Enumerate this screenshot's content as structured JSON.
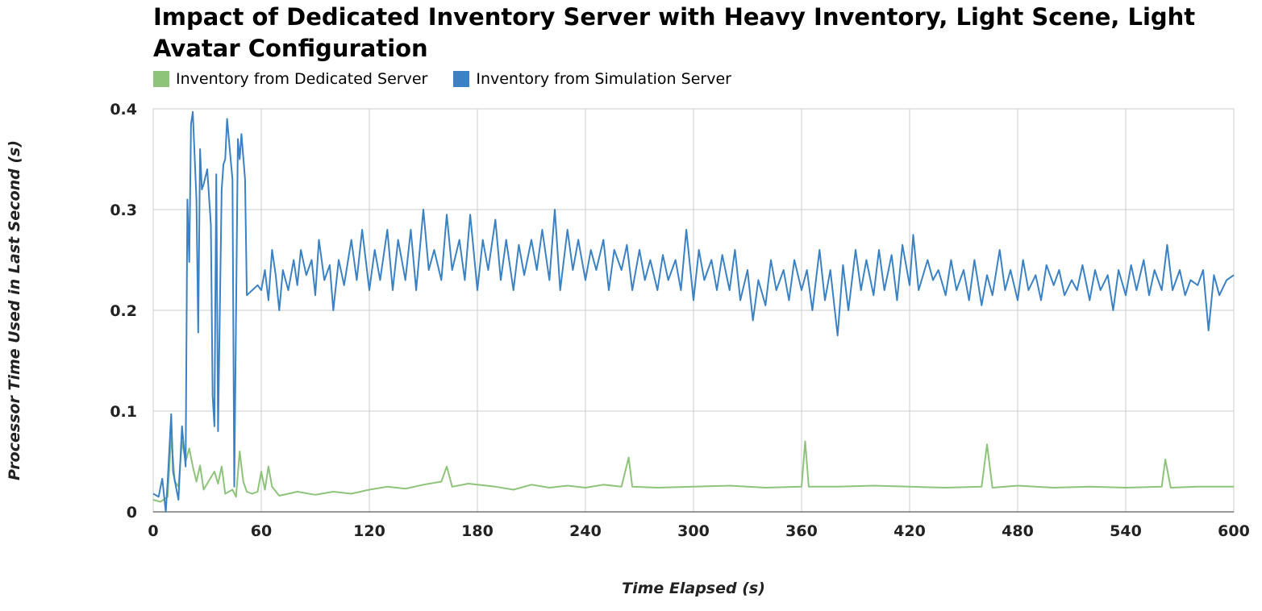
{
  "chart_data": {
    "type": "line",
    "title": "Impact of Dedicated Inventory Server with Heavy Inventory, Light Scene, Light Avatar Configuration",
    "xlabel": "Time Elapsed (s)",
    "ylabel": "Processor Time Used in Last Second (s)",
    "xlim": [
      0,
      600
    ],
    "ylim": [
      0,
      0.4
    ],
    "x_ticks": [
      0,
      60,
      120,
      180,
      240,
      300,
      360,
      420,
      480,
      540,
      600
    ],
    "y_ticks": [
      0,
      0.1,
      0.2,
      0.3,
      0.4
    ],
    "x_tick_labels": [
      "0",
      "60",
      "120",
      "180",
      "240",
      "300",
      "360",
      "420",
      "480",
      "540",
      "600"
    ],
    "y_tick_labels": [
      "0",
      "0.1",
      "0.2",
      "0.3",
      "0.4"
    ],
    "grid": true,
    "legend_position": "top-left",
    "series": [
      {
        "name": "Inventory from Dedicated Server",
        "color": "#8dc47a",
        "points": [
          [
            0,
            0.012
          ],
          [
            4,
            0.01
          ],
          [
            8,
            0.015
          ],
          [
            10,
            0.075
          ],
          [
            12,
            0.03
          ],
          [
            14,
            0.025
          ],
          [
            16,
            0.07
          ],
          [
            18,
            0.05
          ],
          [
            20,
            0.063
          ],
          [
            22,
            0.045
          ],
          [
            24,
            0.03
          ],
          [
            26,
            0.046
          ],
          [
            28,
            0.022
          ],
          [
            30,
            0.028
          ],
          [
            34,
            0.04
          ],
          [
            36,
            0.028
          ],
          [
            38,
            0.045
          ],
          [
            40,
            0.018
          ],
          [
            44,
            0.022
          ],
          [
            46,
            0.015
          ],
          [
            48,
            0.06
          ],
          [
            50,
            0.03
          ],
          [
            52,
            0.02
          ],
          [
            55,
            0.018
          ],
          [
            58,
            0.02
          ],
          [
            60,
            0.04
          ],
          [
            62,
            0.022
          ],
          [
            64,
            0.045
          ],
          [
            66,
            0.025
          ],
          [
            70,
            0.016
          ],
          [
            80,
            0.02
          ],
          [
            90,
            0.017
          ],
          [
            100,
            0.02
          ],
          [
            110,
            0.018
          ],
          [
            120,
            0.022
          ],
          [
            130,
            0.025
          ],
          [
            140,
            0.023
          ],
          [
            150,
            0.027
          ],
          [
            160,
            0.03
          ],
          [
            163,
            0.045
          ],
          [
            166,
            0.025
          ],
          [
            175,
            0.028
          ],
          [
            190,
            0.025
          ],
          [
            200,
            0.022
          ],
          [
            210,
            0.027
          ],
          [
            220,
            0.024
          ],
          [
            230,
            0.026
          ],
          [
            240,
            0.024
          ],
          [
            250,
            0.027
          ],
          [
            260,
            0.025
          ],
          [
            264,
            0.054
          ],
          [
            266,
            0.025
          ],
          [
            280,
            0.024
          ],
          [
            300,
            0.025
          ],
          [
            320,
            0.026
          ],
          [
            340,
            0.024
          ],
          [
            360,
            0.025
          ],
          [
            362,
            0.07
          ],
          [
            364,
            0.025
          ],
          [
            380,
            0.025
          ],
          [
            400,
            0.026
          ],
          [
            420,
            0.025
          ],
          [
            440,
            0.024
          ],
          [
            460,
            0.025
          ],
          [
            463,
            0.067
          ],
          [
            466,
            0.024
          ],
          [
            480,
            0.026
          ],
          [
            500,
            0.024
          ],
          [
            520,
            0.025
          ],
          [
            540,
            0.024
          ],
          [
            560,
            0.025
          ],
          [
            562,
            0.052
          ],
          [
            565,
            0.024
          ],
          [
            580,
            0.025
          ],
          [
            600,
            0.025
          ]
        ]
      },
      {
        "name": "Inventory from Simulation Server",
        "color": "#3b82c4",
        "points": [
          [
            0,
            0.018
          ],
          [
            3,
            0.015
          ],
          [
            5,
            0.033
          ],
          [
            7,
            0.0
          ],
          [
            8,
            0.03
          ],
          [
            10,
            0.097
          ],
          [
            11,
            0.04
          ],
          [
            14,
            0.012
          ],
          [
            16,
            0.085
          ],
          [
            18,
            0.045
          ],
          [
            19,
            0.31
          ],
          [
            20,
            0.248
          ],
          [
            21,
            0.385
          ],
          [
            22,
            0.397
          ],
          [
            24,
            0.31
          ],
          [
            25,
            0.178
          ],
          [
            26,
            0.36
          ],
          [
            27,
            0.32
          ],
          [
            28,
            0.325
          ],
          [
            30,
            0.34
          ],
          [
            32,
            0.285
          ],
          [
            33,
            0.115
          ],
          [
            34,
            0.085
          ],
          [
            35,
            0.335
          ],
          [
            36,
            0.08
          ],
          [
            38,
            0.32
          ],
          [
            39,
            0.345
          ],
          [
            40,
            0.35
          ],
          [
            41,
            0.39
          ],
          [
            43,
            0.35
          ],
          [
            44,
            0.33
          ],
          [
            45,
            0.025
          ],
          [
            47,
            0.37
          ],
          [
            48,
            0.35
          ],
          [
            49,
            0.375
          ],
          [
            51,
            0.33
          ],
          [
            52,
            0.215
          ],
          [
            55,
            0.22
          ],
          [
            58,
            0.225
          ],
          [
            60,
            0.22
          ],
          [
            62,
            0.24
          ],
          [
            64,
            0.21
          ],
          [
            66,
            0.26
          ],
          [
            68,
            0.235
          ],
          [
            70,
            0.2
          ],
          [
            72,
            0.24
          ],
          [
            75,
            0.22
          ],
          [
            78,
            0.25
          ],
          [
            80,
            0.225
          ],
          [
            82,
            0.26
          ],
          [
            85,
            0.235
          ],
          [
            88,
            0.25
          ],
          [
            90,
            0.215
          ],
          [
            92,
            0.27
          ],
          [
            95,
            0.23
          ],
          [
            98,
            0.245
          ],
          [
            100,
            0.2
          ],
          [
            103,
            0.25
          ],
          [
            106,
            0.225
          ],
          [
            110,
            0.27
          ],
          [
            113,
            0.23
          ],
          [
            116,
            0.28
          ],
          [
            120,
            0.22
          ],
          [
            123,
            0.26
          ],
          [
            126,
            0.23
          ],
          [
            130,
            0.28
          ],
          [
            133,
            0.22
          ],
          [
            136,
            0.27
          ],
          [
            140,
            0.23
          ],
          [
            143,
            0.28
          ],
          [
            146,
            0.22
          ],
          [
            150,
            0.3
          ],
          [
            153,
            0.24
          ],
          [
            156,
            0.26
          ],
          [
            160,
            0.23
          ],
          [
            163,
            0.295
          ],
          [
            166,
            0.24
          ],
          [
            170,
            0.27
          ],
          [
            173,
            0.23
          ],
          [
            176,
            0.295
          ],
          [
            180,
            0.22
          ],
          [
            183,
            0.27
          ],
          [
            186,
            0.24
          ],
          [
            190,
            0.29
          ],
          [
            193,
            0.23
          ],
          [
            196,
            0.27
          ],
          [
            200,
            0.22
          ],
          [
            203,
            0.265
          ],
          [
            206,
            0.235
          ],
          [
            210,
            0.27
          ],
          [
            213,
            0.24
          ],
          [
            216,
            0.28
          ],
          [
            220,
            0.23
          ],
          [
            223,
            0.3
          ],
          [
            226,
            0.22
          ],
          [
            230,
            0.28
          ],
          [
            233,
            0.24
          ],
          [
            236,
            0.27
          ],
          [
            240,
            0.23
          ],
          [
            243,
            0.26
          ],
          [
            246,
            0.24
          ],
          [
            250,
            0.27
          ],
          [
            253,
            0.22
          ],
          [
            256,
            0.26
          ],
          [
            260,
            0.24
          ],
          [
            263,
            0.265
          ],
          [
            266,
            0.22
          ],
          [
            270,
            0.26
          ],
          [
            273,
            0.23
          ],
          [
            276,
            0.25
          ],
          [
            280,
            0.22
          ],
          [
            283,
            0.255
          ],
          [
            286,
            0.23
          ],
          [
            290,
            0.25
          ],
          [
            293,
            0.22
          ],
          [
            296,
            0.28
          ],
          [
            300,
            0.21
          ],
          [
            303,
            0.26
          ],
          [
            306,
            0.23
          ],
          [
            310,
            0.25
          ],
          [
            313,
            0.22
          ],
          [
            316,
            0.255
          ],
          [
            320,
            0.22
          ],
          [
            323,
            0.26
          ],
          [
            326,
            0.21
          ],
          [
            330,
            0.24
          ],
          [
            333,
            0.19
          ],
          [
            336,
            0.23
          ],
          [
            340,
            0.205
          ],
          [
            343,
            0.25
          ],
          [
            346,
            0.22
          ],
          [
            350,
            0.24
          ],
          [
            353,
            0.21
          ],
          [
            356,
            0.25
          ],
          [
            360,
            0.22
          ],
          [
            363,
            0.24
          ],
          [
            366,
            0.2
          ],
          [
            370,
            0.26
          ],
          [
            373,
            0.21
          ],
          [
            376,
            0.24
          ],
          [
            380,
            0.175
          ],
          [
            383,
            0.245
          ],
          [
            386,
            0.2
          ],
          [
            390,
            0.26
          ],
          [
            393,
            0.22
          ],
          [
            396,
            0.25
          ],
          [
            400,
            0.215
          ],
          [
            403,
            0.26
          ],
          [
            406,
            0.22
          ],
          [
            410,
            0.255
          ],
          [
            413,
            0.21
          ],
          [
            416,
            0.265
          ],
          [
            420,
            0.225
          ],
          [
            422,
            0.275
          ],
          [
            425,
            0.22
          ],
          [
            430,
            0.25
          ],
          [
            433,
            0.23
          ],
          [
            436,
            0.24
          ],
          [
            440,
            0.215
          ],
          [
            443,
            0.25
          ],
          [
            446,
            0.22
          ],
          [
            450,
            0.24
          ],
          [
            453,
            0.21
          ],
          [
            456,
            0.25
          ],
          [
            460,
            0.205
          ],
          [
            463,
            0.235
          ],
          [
            466,
            0.215
          ],
          [
            470,
            0.26
          ],
          [
            473,
            0.22
          ],
          [
            476,
            0.24
          ],
          [
            480,
            0.21
          ],
          [
            483,
            0.25
          ],
          [
            486,
            0.22
          ],
          [
            490,
            0.235
          ],
          [
            493,
            0.21
          ],
          [
            496,
            0.245
          ],
          [
            500,
            0.225
          ],
          [
            503,
            0.24
          ],
          [
            506,
            0.215
          ],
          [
            510,
            0.23
          ],
          [
            513,
            0.22
          ],
          [
            516,
            0.245
          ],
          [
            520,
            0.21
          ],
          [
            523,
            0.24
          ],
          [
            526,
            0.22
          ],
          [
            530,
            0.235
          ],
          [
            533,
            0.2
          ],
          [
            536,
            0.24
          ],
          [
            540,
            0.215
          ],
          [
            543,
            0.245
          ],
          [
            546,
            0.22
          ],
          [
            550,
            0.25
          ],
          [
            553,
            0.215
          ],
          [
            556,
            0.24
          ],
          [
            560,
            0.22
          ],
          [
            563,
            0.265
          ],
          [
            566,
            0.22
          ],
          [
            570,
            0.24
          ],
          [
            573,
            0.215
          ],
          [
            576,
            0.23
          ],
          [
            580,
            0.225
          ],
          [
            583,
            0.24
          ],
          [
            586,
            0.18
          ],
          [
            589,
            0.235
          ],
          [
            592,
            0.215
          ],
          [
            596,
            0.23
          ],
          [
            600,
            0.235
          ]
        ]
      }
    ]
  }
}
